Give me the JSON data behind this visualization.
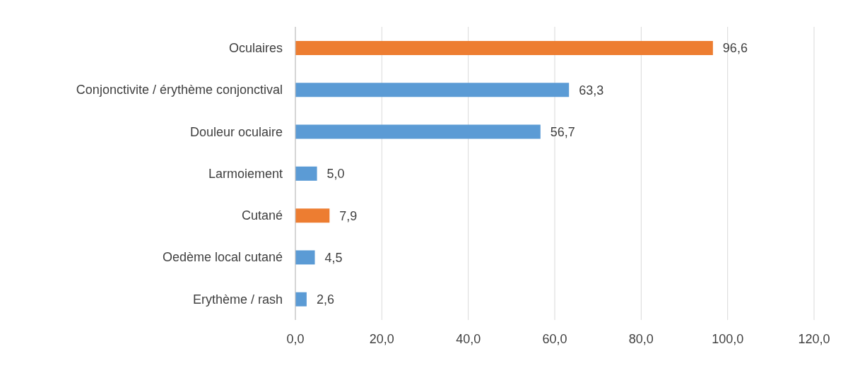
{
  "chart_data": {
    "type": "bar",
    "orientation": "horizontal",
    "categories": [
      "Oculaires",
      "Conjonctivite / érythème conjonctival",
      "Douleur oculaire",
      "Larmoiement",
      "Cutané",
      "Oedème local cutané",
      "Erythème / rash"
    ],
    "values": [
      96.6,
      63.3,
      56.7,
      5.0,
      7.9,
      4.5,
      2.6
    ],
    "colors": [
      "#ed7d31",
      "#5b9bd5",
      "#5b9bd5",
      "#5b9bd5",
      "#ed7d31",
      "#5b9bd5",
      "#5b9bd5"
    ],
    "value_labels": [
      "96,6",
      "63,3",
      "56,7",
      "5,0",
      "7,9",
      "4,5",
      "2,6"
    ],
    "xlim": [
      0,
      120
    ],
    "xticks": [
      {
        "value": 0,
        "label": "0,0"
      },
      {
        "value": 20,
        "label": "20,0"
      },
      {
        "value": 40,
        "label": "40,0"
      },
      {
        "value": 60,
        "label": "60,0"
      },
      {
        "value": 80,
        "label": "80,0"
      },
      {
        "value": 100,
        "label": "100,0"
      },
      {
        "value": 120,
        "label": "120,0"
      }
    ],
    "grid": "x"
  }
}
